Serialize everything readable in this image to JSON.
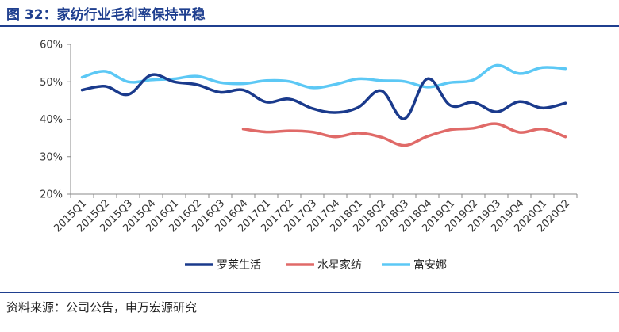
{
  "figure": {
    "title": "图 32：家纺行业毛利率保持平稳",
    "source": "资料来源：公司公告，申万宏源研究"
  },
  "colors": {
    "title": "#1f3f8f",
    "series": [
      "#1a3a8c",
      "#e06a68",
      "#5cc8f5"
    ]
  },
  "chart_data": {
    "type": "line",
    "title": "",
    "xlabel": "",
    "ylabel": "",
    "ylim": [
      0.2,
      0.6
    ],
    "yticks": [
      "20%",
      "30%",
      "40%",
      "50%",
      "60%"
    ],
    "grid": false,
    "legend_position": "bottom",
    "categories": [
      "2015Q1",
      "2015Q2",
      "2015Q3",
      "2015Q4",
      "2016Q1",
      "2016Q2",
      "2016Q3",
      "2016Q4",
      "2017Q1",
      "2017Q2",
      "2017Q3",
      "2017Q4",
      "2018Q1",
      "2018Q2",
      "2018Q3",
      "2018Q4",
      "2019Q1",
      "2019Q2",
      "2019Q3",
      "2019Q4",
      "2020Q1",
      "2020Q2"
    ],
    "series": [
      {
        "name": "罗莱生活",
        "values": [
          0.478,
          0.488,
          0.466,
          0.518,
          0.5,
          0.492,
          0.472,
          0.478,
          0.446,
          0.454,
          0.429,
          0.418,
          0.432,
          0.476,
          0.401,
          0.508,
          0.437,
          0.445,
          0.42,
          0.447,
          0.43,
          0.443
        ]
      },
      {
        "name": "水星家纺",
        "values": [
          null,
          null,
          null,
          null,
          null,
          null,
          null,
          0.374,
          0.366,
          0.369,
          0.366,
          0.353,
          0.363,
          0.352,
          0.33,
          0.354,
          0.372,
          0.376,
          0.388,
          0.365,
          0.374,
          0.353
        ]
      },
      {
        "name": "富安娜",
        "values": [
          0.512,
          0.528,
          0.5,
          0.505,
          0.508,
          0.515,
          0.498,
          0.495,
          0.503,
          0.501,
          0.484,
          0.493,
          0.508,
          0.503,
          0.501,
          0.486,
          0.498,
          0.505,
          0.544,
          0.522,
          0.538,
          0.535
        ]
      }
    ]
  }
}
